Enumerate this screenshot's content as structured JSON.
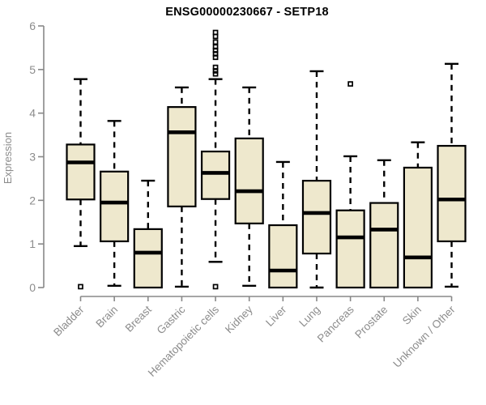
{
  "chart_data": {
    "type": "box",
    "title": "ENSG00000230667 - SETP18",
    "ylabel": "Expression",
    "xlabel": "",
    "ylim": [
      0,
      6
    ],
    "yticks": [
      0,
      1,
      2,
      3,
      4,
      5,
      6
    ],
    "grid": false,
    "legend": "none",
    "categories": [
      "Bladder",
      "Brain",
      "Breast",
      "Gastric",
      "Hematopoietic cells",
      "Kidney",
      "Liver",
      "Lung",
      "Pancreas",
      "Prostate",
      "Skin",
      "Unknown / Other"
    ],
    "boxes": [
      {
        "label": "Bladder",
        "whislo": 0.95,
        "q1": 2.02,
        "median": 2.87,
        "q3": 3.28,
        "whishi": 4.78,
        "outliers": [
          0.02
        ]
      },
      {
        "label": "Brain",
        "whislo": 0.04,
        "q1": 1.06,
        "median": 1.95,
        "q3": 2.66,
        "whishi": 3.82,
        "outliers": []
      },
      {
        "label": "Breast",
        "whislo": 0.0,
        "q1": 0.0,
        "median": 0.8,
        "q3": 1.34,
        "whishi": 2.45,
        "outliers": []
      },
      {
        "label": "Gastric",
        "whislo": 0.02,
        "q1": 1.86,
        "median": 3.56,
        "q3": 4.14,
        "whishi": 4.59,
        "outliers": []
      },
      {
        "label": "Hematopoietic cells",
        "whislo": 0.59,
        "q1": 2.03,
        "median": 2.63,
        "q3": 3.12,
        "whishi": 4.78,
        "outliers": [
          5.85,
          5.76,
          5.63,
          5.52,
          5.44,
          5.36,
          5.28,
          5.05,
          4.97,
          4.9,
          0.02
        ]
      },
      {
        "label": "Kidney",
        "whislo": 0.04,
        "q1": 1.47,
        "median": 2.21,
        "q3": 3.42,
        "whishi": 4.59,
        "outliers": []
      },
      {
        "label": "Liver",
        "whislo": 0.0,
        "q1": 0.0,
        "median": 0.39,
        "q3": 1.43,
        "whishi": 2.88,
        "outliers": []
      },
      {
        "label": "Lung",
        "whislo": 0.0,
        "q1": 0.78,
        "median": 1.71,
        "q3": 2.45,
        "whishi": 4.96,
        "outliers": []
      },
      {
        "label": "Pancreas",
        "whislo": 0.0,
        "q1": 0.0,
        "median": 1.15,
        "q3": 1.77,
        "whishi": 3.01,
        "outliers": [
          4.67
        ]
      },
      {
        "label": "Prostate",
        "whislo": 0.0,
        "q1": 0.0,
        "median": 1.33,
        "q3": 1.94,
        "whishi": 2.92,
        "outliers": []
      },
      {
        "label": "Skin",
        "whislo": 0.0,
        "q1": 0.0,
        "median": 0.69,
        "q3": 2.75,
        "whishi": 3.33,
        "outliers": []
      },
      {
        "label": "Unknown / Other",
        "whislo": 0.02,
        "q1": 1.06,
        "median": 2.02,
        "q3": 3.25,
        "whishi": 5.13,
        "outliers": []
      }
    ],
    "colors": {
      "box_fill": "#EEE8CD",
      "box_border": "#000000",
      "median": "#000000",
      "whisker": "#000000",
      "outlier": "#000000",
      "axis": "#888888",
      "tick_text": "#8c8c8c",
      "title_text": "#000000"
    }
  }
}
